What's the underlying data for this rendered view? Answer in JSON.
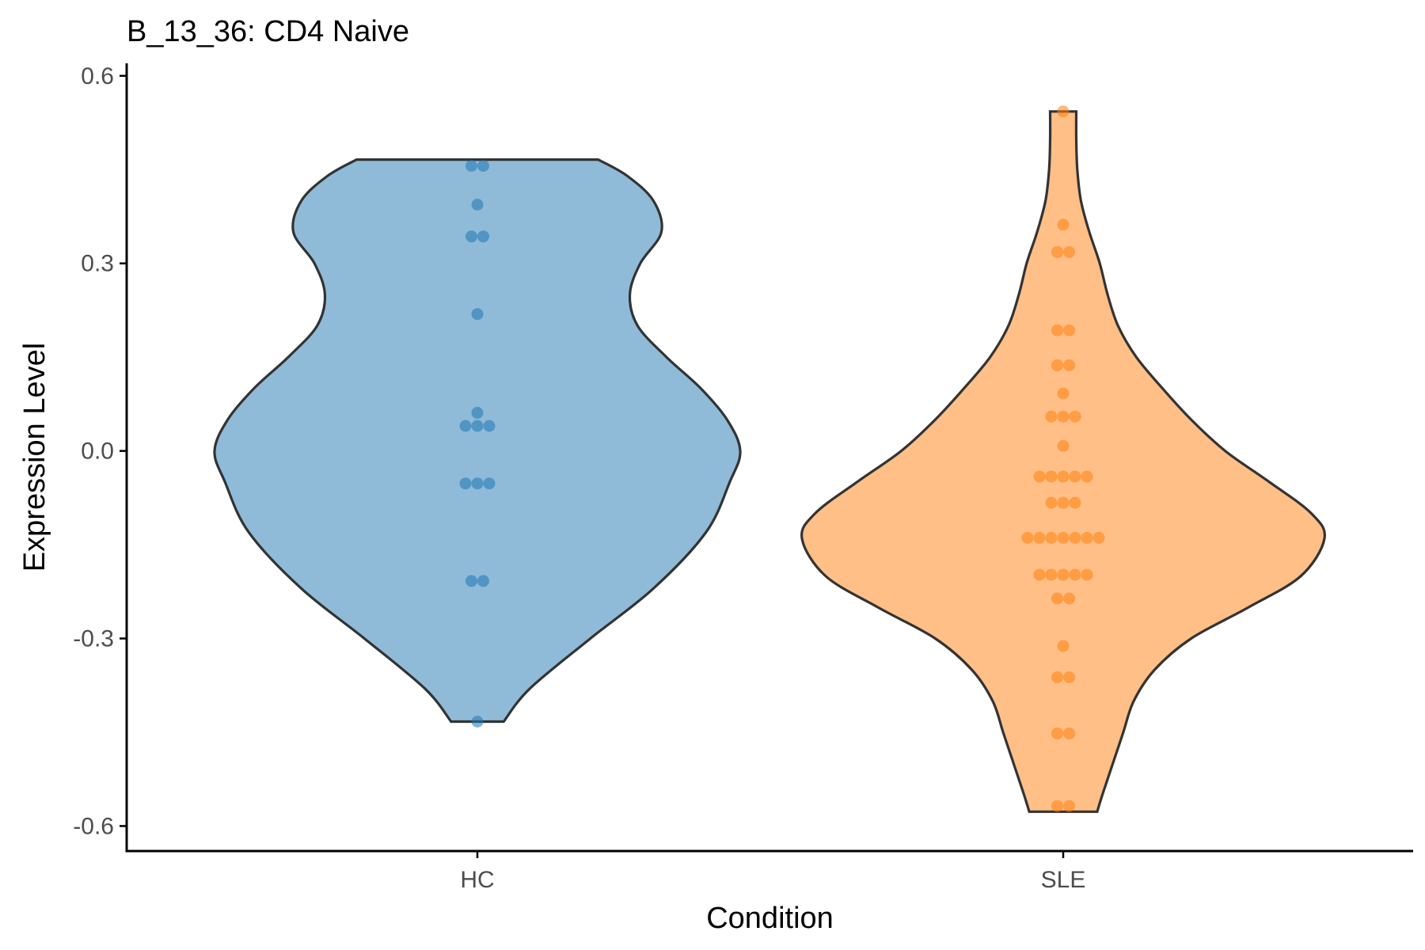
{
  "chart_data": {
    "type": "violin",
    "title": "B_13_36: CD4 Naive",
    "xlabel": "Condition",
    "ylabel": "Expression Level",
    "ylim": [
      -0.64,
      0.62
    ],
    "yticks": [
      -0.6,
      -0.3,
      0.0,
      0.3,
      0.6
    ],
    "ytick_labels": [
      "-0.6",
      "-0.3",
      "0.0",
      "0.3",
      "0.6"
    ],
    "categories": [
      "HC",
      "SLE"
    ],
    "grid": false,
    "series": [
      {
        "name": "HC",
        "color": "#1f77b4",
        "points": [
          0.456,
          0.456,
          0.394,
          0.343,
          0.343,
          0.219,
          0.061,
          0.04,
          0.04,
          0.04,
          -0.052,
          -0.052,
          -0.052,
          -0.208,
          -0.208,
          -0.433
        ],
        "density": [
          [
            -0.433,
            0.1
          ],
          [
            -0.38,
            0.2
          ],
          [
            -0.3,
            0.43
          ],
          [
            -0.22,
            0.67
          ],
          [
            -0.13,
            0.87
          ],
          [
            -0.05,
            0.96
          ],
          [
            0.0,
            1.0
          ],
          [
            0.05,
            0.95
          ],
          [
            0.1,
            0.85
          ],
          [
            0.15,
            0.72
          ],
          [
            0.2,
            0.61
          ],
          [
            0.25,
            0.58
          ],
          [
            0.3,
            0.62
          ],
          [
            0.35,
            0.7
          ],
          [
            0.4,
            0.67
          ],
          [
            0.44,
            0.57
          ],
          [
            0.466,
            0.46
          ]
        ]
      },
      {
        "name": "SLE",
        "color": "#ff7f0e",
        "points": [
          0.543,
          0.362,
          0.318,
          0.318,
          0.193,
          0.193,
          0.137,
          0.137,
          0.092,
          0.055,
          0.055,
          0.055,
          0.008,
          -0.041,
          -0.041,
          -0.041,
          -0.041,
          -0.041,
          -0.083,
          -0.083,
          -0.083,
          -0.139,
          -0.139,
          -0.139,
          -0.139,
          -0.139,
          -0.139,
          -0.139,
          -0.198,
          -0.198,
          -0.198,
          -0.198,
          -0.198,
          -0.236,
          -0.236,
          -0.312,
          -0.362,
          -0.362,
          -0.452,
          -0.452,
          -0.568,
          -0.568
        ],
        "density": [
          [
            -0.577,
            0.13
          ],
          [
            -0.55,
            0.15
          ],
          [
            -0.5,
            0.19
          ],
          [
            -0.45,
            0.23
          ],
          [
            -0.4,
            0.27
          ],
          [
            -0.35,
            0.35
          ],
          [
            -0.3,
            0.49
          ],
          [
            -0.25,
            0.71
          ],
          [
            -0.2,
            0.91
          ],
          [
            -0.14,
            1.0
          ],
          [
            -0.1,
            0.95
          ],
          [
            -0.05,
            0.79
          ],
          [
            0.0,
            0.62
          ],
          [
            0.05,
            0.49
          ],
          [
            0.1,
            0.38
          ],
          [
            0.15,
            0.28
          ],
          [
            0.2,
            0.21
          ],
          [
            0.25,
            0.17
          ],
          [
            0.3,
            0.14
          ],
          [
            0.35,
            0.1
          ],
          [
            0.4,
            0.068
          ],
          [
            0.45,
            0.054
          ],
          [
            0.5,
            0.05
          ],
          [
            0.543,
            0.05
          ]
        ]
      }
    ]
  }
}
